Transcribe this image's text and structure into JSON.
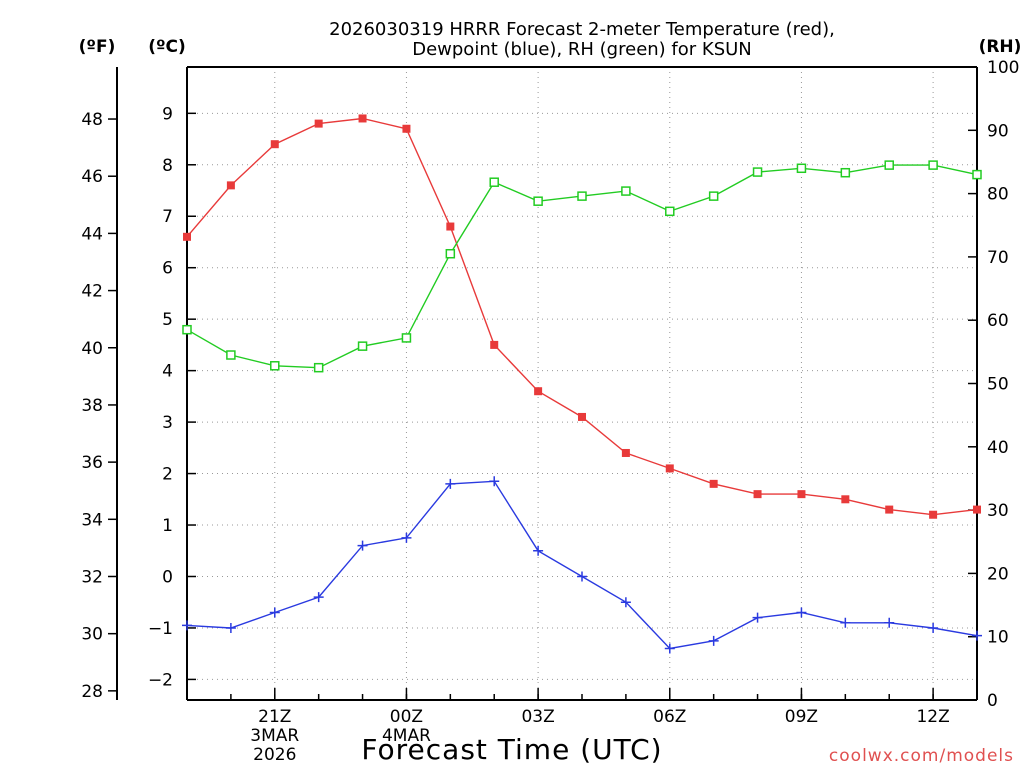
{
  "chart_data": {
    "type": "line",
    "title_line1": "2026030319 HRRR Forecast 2-meter Temperature (red),",
    "title_line2": "Dewpoint (blue), RH (green) for KSUN",
    "xlabel": "Forecast Time (UTC)",
    "credit": "coolwx.com/models",
    "unit_left_f": "(ºF)",
    "unit_left_c": "(ºC)",
    "unit_right": "(RH)",
    "x_hours": [
      19,
      20,
      21,
      22,
      23,
      24,
      25,
      26,
      27,
      28,
      29,
      30,
      31,
      32,
      33,
      34,
      35,
      36,
      37
    ],
    "x_range": [
      19,
      37
    ],
    "x_ticks": [
      {
        "h": 21,
        "label": "21Z",
        "sub1": "3MAR",
        "sub2": "2026"
      },
      {
        "h": 24,
        "label": "00Z",
        "sub1": "4MAR",
        "sub2": ""
      },
      {
        "h": 27,
        "label": "03Z",
        "sub1": "",
        "sub2": ""
      },
      {
        "h": 30,
        "label": "06Z",
        "sub1": "",
        "sub2": ""
      },
      {
        "h": 33,
        "label": "09Z",
        "sub1": "",
        "sub2": ""
      },
      {
        "h": 36,
        "label": "12Z",
        "sub1": "",
        "sub2": ""
      }
    ],
    "celsius_range": [
      -2.4,
      9.9
    ],
    "celsius_ticks": [
      "-2",
      "-1",
      "0",
      "1",
      "2",
      "3",
      "4",
      "5",
      "6",
      "7",
      "8",
      "9"
    ],
    "fahrenheit_ticks": [
      "28",
      "30",
      "32",
      "34",
      "36",
      "38",
      "40",
      "42",
      "44",
      "46",
      "48"
    ],
    "rh_range": [
      0,
      100
    ],
    "rh_ticks": [
      "0",
      "10",
      "20",
      "30",
      "40",
      "50",
      "60",
      "70",
      "80",
      "90",
      "100"
    ],
    "series": [
      {
        "name": "2-meter Temperature",
        "axis": "celsius",
        "color": "#e83a3a",
        "marker": "filled-square",
        "values": [
          6.6,
          7.6,
          8.4,
          8.8,
          8.9,
          8.7,
          6.8,
          4.5,
          3.6,
          3.1,
          2.4,
          2.1,
          1.8,
          1.6,
          1.6,
          1.5,
          1.3,
          1.2,
          1.3
        ]
      },
      {
        "name": "Dewpoint",
        "axis": "celsius",
        "color": "#2a3ae0",
        "marker": "plus",
        "values": [
          -0.95,
          -1.0,
          -0.7,
          -0.4,
          0.6,
          0.75,
          1.8,
          1.85,
          0.5,
          0.0,
          -0.5,
          -1.4,
          -1.25,
          -0.8,
          -0.7,
          -0.9,
          -0.9,
          -1.0,
          -1.15
        ]
      },
      {
        "name": "RH",
        "axis": "rh",
        "color": "#22cc22",
        "marker": "open-square",
        "values": [
          58.5,
          54.5,
          52.8,
          52.5,
          55.9,
          57.2,
          70.5,
          81.8,
          78.8,
          79.6,
          80.4,
          77.2,
          79.6,
          83.4,
          84.0,
          83.3,
          84.5,
          84.5,
          83.0
        ]
      }
    ]
  }
}
